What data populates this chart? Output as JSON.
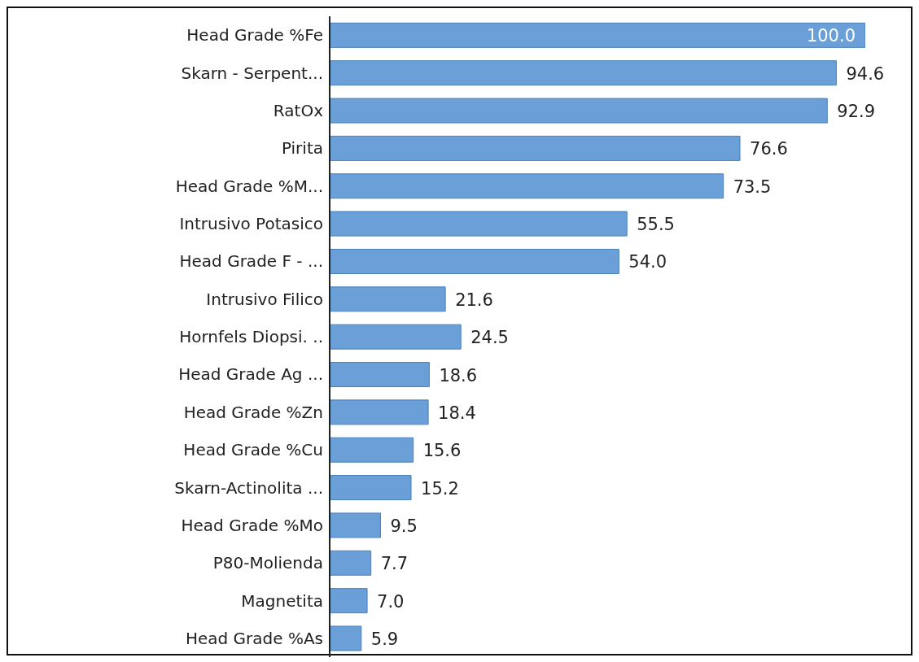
{
  "chart_data": {
    "type": "bar",
    "orientation": "horizontal",
    "categories": [
      "Head Grade %Fe",
      "Skarn - Serpent...",
      "RatOx",
      "Pirita",
      "Head Grade %M...",
      "Intrusivo Potasico",
      "Head Grade F - ...",
      "Intrusivo Filico",
      "Hornfels Diopsi. ..",
      "Head Grade Ag ...",
      "Head Grade %Zn",
      "Head Grade %Cu",
      "Skarn-Actinolita ...",
      "Head Grade %Mo",
      "P80-Molienda",
      "Magnetita",
      "Head Grade %As"
    ],
    "values": [
      100.0,
      94.6,
      92.9,
      76.6,
      73.5,
      55.5,
      54.0,
      21.6,
      24.5,
      18.6,
      18.4,
      15.6,
      15.2,
      9.5,
      7.7,
      7.0,
      5.9
    ],
    "value_labels": [
      "100.0",
      "94.6",
      "92.9",
      "76.6",
      "73.5",
      "55.5",
      "54.0",
      "21.6",
      "24.5",
      "18.6",
      "18.4",
      "15.6",
      "15.2",
      "9.5",
      "7.7",
      "7.0",
      "5.9"
    ],
    "color": "#6a9fd8",
    "grid": false,
    "legend": false
  }
}
